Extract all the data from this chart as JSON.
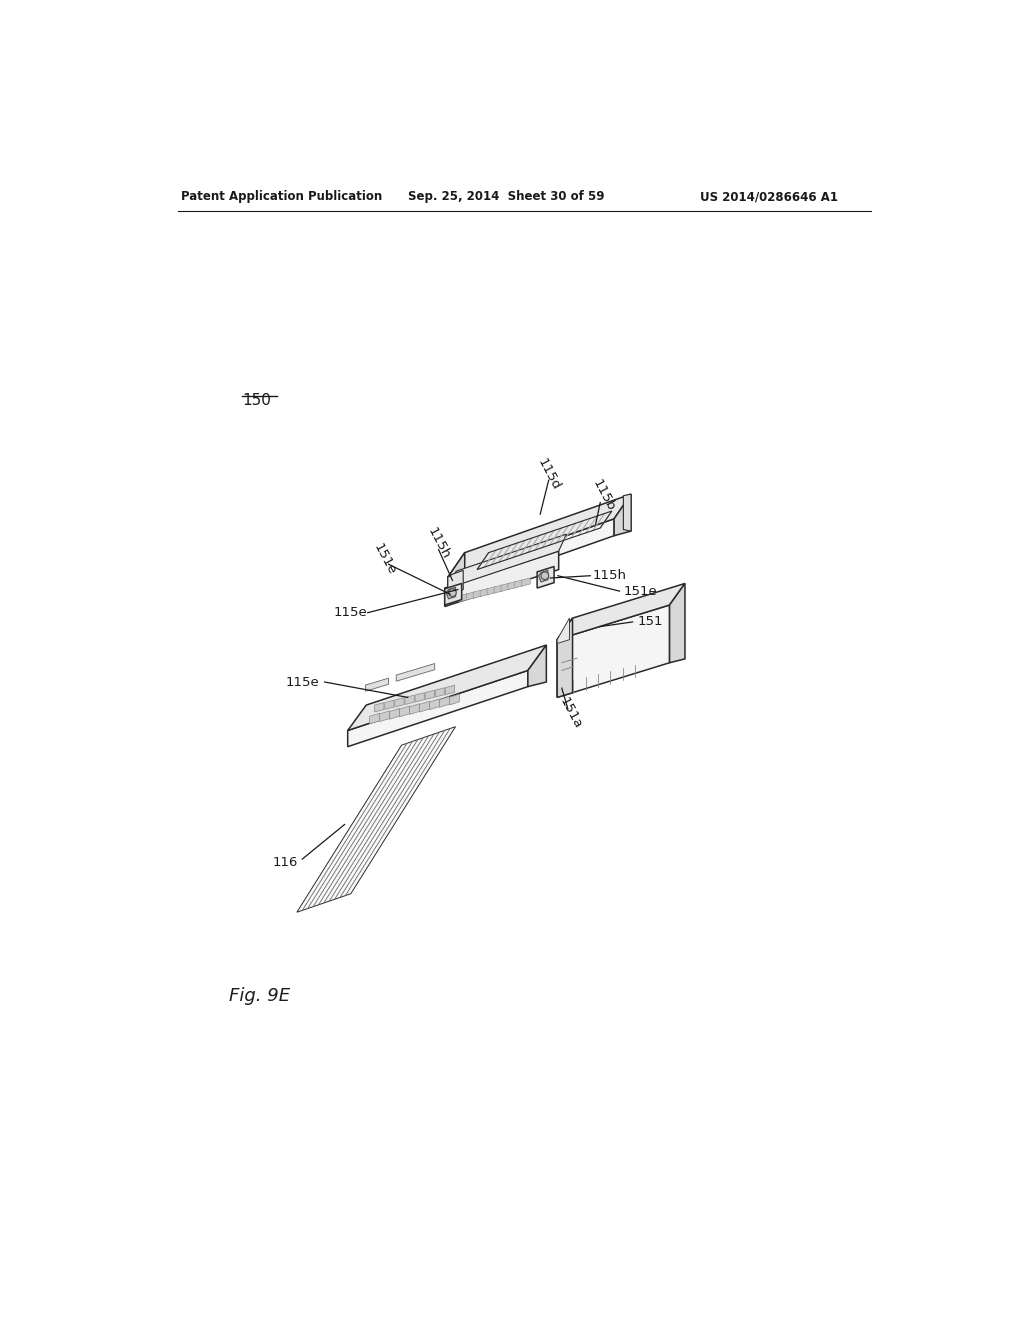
{
  "header_left": "Patent Application Publication",
  "header_center": "Sep. 25, 2014  Sheet 30 of 59",
  "header_right": "US 2014/0286646 A1",
  "fig_label": "Fig. 9E",
  "bg_color": "#ffffff",
  "line_color": "#1a1a1a",
  "lw": 1.1,
  "lw_thin": 0.7,
  "lw_thick": 1.5
}
